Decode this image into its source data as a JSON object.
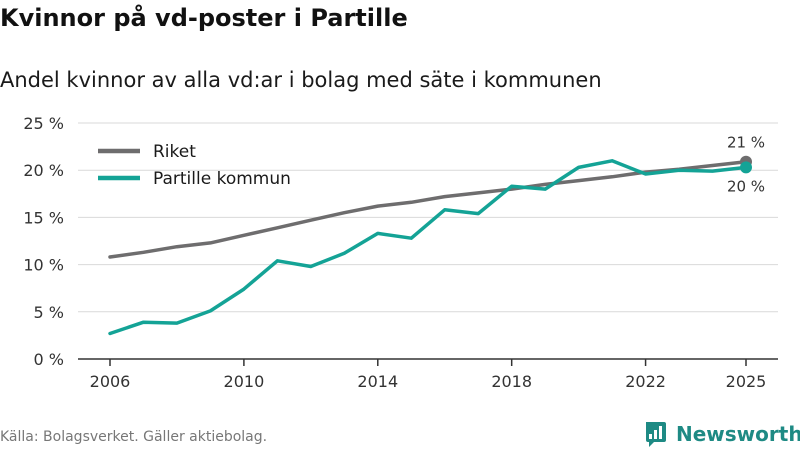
{
  "title": "Kvinnor på vd-poster i Partille",
  "subtitle": "Andel kvinnor av alla vd:ar i bolag med säte i kommunen",
  "source": "Källa: Bolagsverket. Gäller aktiebolag.",
  "brand": {
    "name": "Newsworthy",
    "icon": "newsworthy-logo-icon",
    "color": "#1e8a84"
  },
  "chart_data": {
    "type": "line",
    "x": [
      2006,
      2007,
      2008,
      2009,
      2010,
      2011,
      2012,
      2013,
      2014,
      2015,
      2016,
      2017,
      2018,
      2019,
      2020,
      2021,
      2022,
      2023,
      2024,
      2025
    ],
    "x_ticks": [
      2006,
      2010,
      2014,
      2018,
      2022,
      2025
    ],
    "x_tick_labels": [
      "2006",
      "2010",
      "2014",
      "2018",
      "2022",
      "2025"
    ],
    "ylim": [
      0,
      25
    ],
    "y_ticks": [
      0,
      5,
      10,
      15,
      20,
      25
    ],
    "y_tick_labels": [
      "0 %",
      "5 %",
      "10 %",
      "15 %",
      "20 %",
      "25 %"
    ],
    "grid": true,
    "legend_position": "top-left",
    "series": [
      {
        "name": "Riket",
        "color": "#6e6d6e",
        "values": [
          10.8,
          11.3,
          11.9,
          12.3,
          13.1,
          13.9,
          14.7,
          15.5,
          16.2,
          16.6,
          17.2,
          17.6,
          18.0,
          18.5,
          18.9,
          19.3,
          19.8,
          20.1,
          20.5,
          20.9
        ],
        "end_label": "21 %"
      },
      {
        "name": "Partille kommun",
        "color": "#14a396",
        "values": [
          2.7,
          3.9,
          3.8,
          5.1,
          7.4,
          10.4,
          9.8,
          11.2,
          13.3,
          12.8,
          15.8,
          15.4,
          18.3,
          18.0,
          20.3,
          21.0,
          19.6,
          20.0,
          19.9,
          20.3
        ],
        "end_label": "20 %"
      }
    ]
  }
}
